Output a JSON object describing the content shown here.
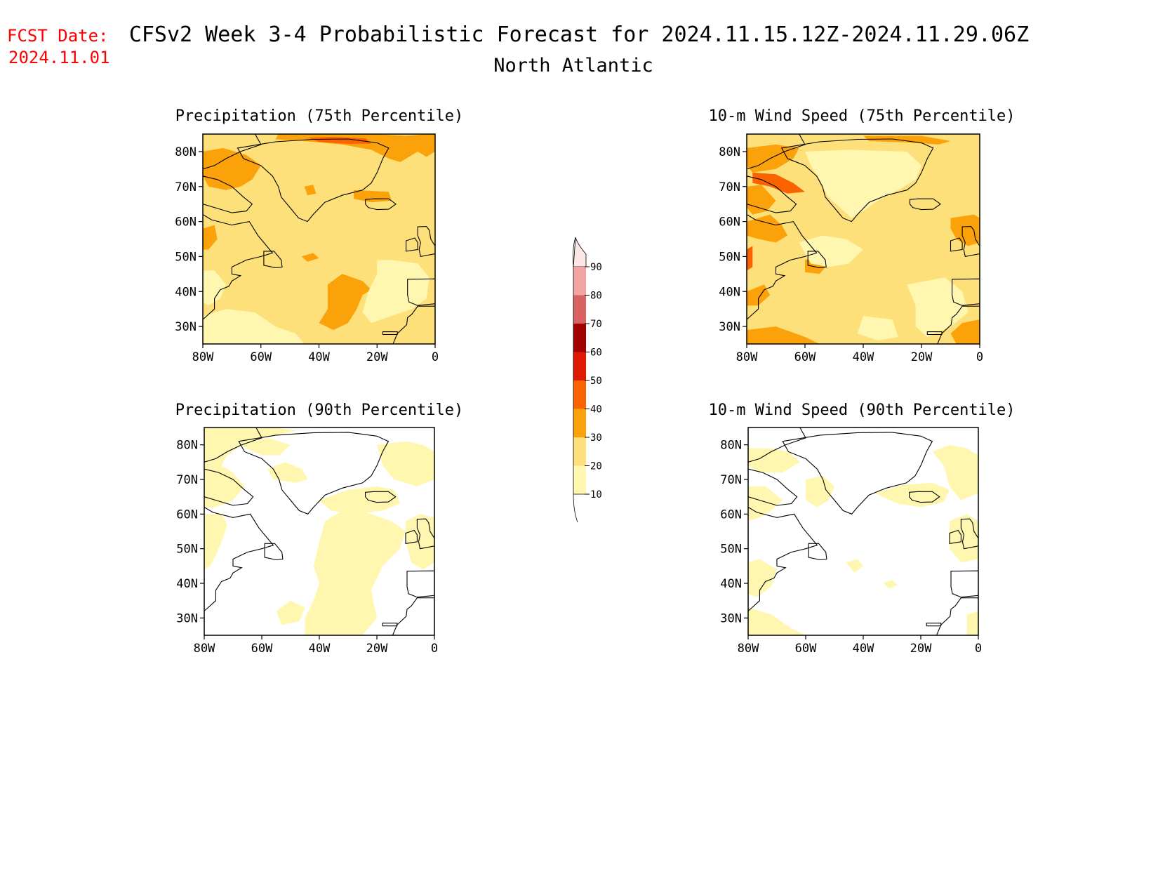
{
  "header": {
    "fcst_label": "FCST Date:",
    "fcst_date": "2024.11.01",
    "title": "CFSv2 Week 3-4 Probabilistic Forecast for 2024.11.15.12Z-2024.11.29.06Z",
    "region": "North Atlantic"
  },
  "colors": {
    "fcst_text": "#ff0000",
    "c10": "#fff7b0",
    "c20": "#fde07a",
    "c30": "#fba20a",
    "c40": "#fb6200",
    "c50": "#e01a00",
    "c60": "#a30000",
    "c70": "#d96363",
    "c80": "#f4a3a3",
    "c90": "#fde6e6",
    "coast": "#000000"
  },
  "axes": {
    "lat_labels": [
      "80N",
      "70N",
      "60N",
      "50N",
      "40N",
      "30N"
    ],
    "lon_labels": [
      "80W",
      "60W",
      "40W",
      "20W",
      "0"
    ]
  },
  "panels": [
    {
      "id": "precip-75",
      "title": "Precipitation (75th Percentile)",
      "base_level": 20,
      "patches": "precip75"
    },
    {
      "id": "wind-75",
      "title": "10-m Wind Speed (75th Percentile)",
      "base_level": 20,
      "patches": "wind75"
    },
    {
      "id": "precip-90",
      "title": "Precipitation (90th Percentile)",
      "base_level": 0,
      "patches": "precip90"
    },
    {
      "id": "wind-90",
      "title": "10-m Wind Speed (90th Percentile)",
      "base_level": 0,
      "patches": "wind90"
    }
  ],
  "colorbar": {
    "labels": [
      "90",
      "80",
      "70",
      "60",
      "50",
      "40",
      "30",
      "20",
      "10"
    ]
  }
}
